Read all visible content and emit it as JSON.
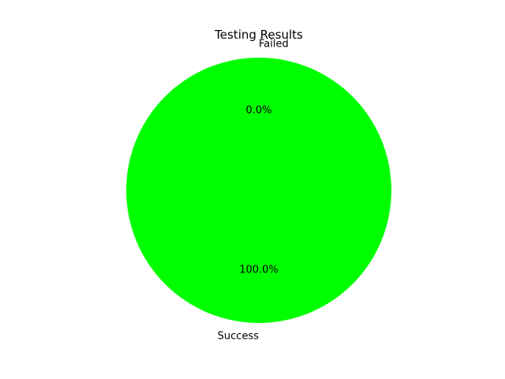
{
  "chart_data": {
    "type": "pie",
    "title": "Testing Results",
    "categories": [
      "Success",
      "Failed"
    ],
    "values": [
      100.0,
      0.0
    ],
    "percent_labels": [
      "100.0%",
      "0.0%"
    ],
    "colors": [
      "#00ff00",
      "#ff0000"
    ],
    "start_angle_deg": 90,
    "counterclockwise": true
  }
}
